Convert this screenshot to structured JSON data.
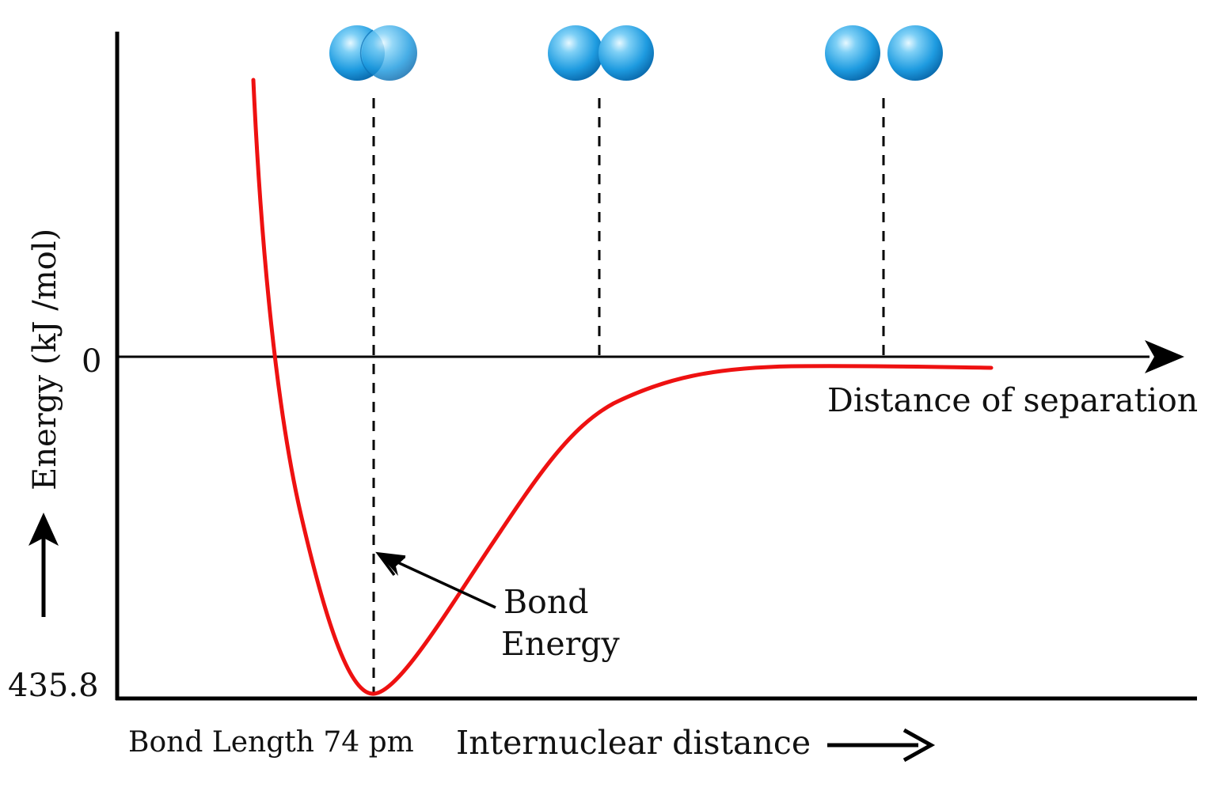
{
  "labels": {
    "y_axis": "Energy (kJ /mol)",
    "zero_tick": "0",
    "min_tick": "435.8",
    "distance_of_separation": "Distance of separation",
    "bond_energy_line1": "Bond",
    "bond_energy_line2": "Energy",
    "bond_length": "Bond Length 74 pm",
    "x_axis": "Internuclear distance"
  },
  "colors": {
    "curve": "#ee1111",
    "axes": "#000000",
    "atom_light": "#bfeaff",
    "atom_mid": "#2aa4e6",
    "atom_dark": "#0a6fb5"
  },
  "molecules": [
    {
      "state": "overlapping"
    },
    {
      "state": "touching"
    },
    {
      "state": "separated"
    }
  ]
}
